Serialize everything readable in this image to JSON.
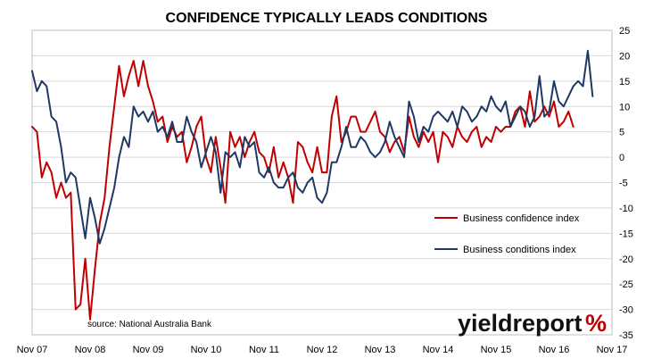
{
  "chart_data": {
    "type": "line",
    "title": "CONFIDENCE TYPICALLY LEADS CONDITIONS",
    "xlabel": "",
    "ylabel": "",
    "x_tick_labels": [
      "Nov 07",
      "Nov 08",
      "Nov 09",
      "Nov 10",
      "Nov 11",
      "Nov 12",
      "Nov 13",
      "Nov 14",
      "Nov 15",
      "Nov 16",
      "Nov 17"
    ],
    "x_range": [
      0,
      120
    ],
    "ylim": [
      -35,
      25
    ],
    "y_ticks": [
      -35,
      -30,
      -25,
      -20,
      -15,
      -10,
      -5,
      0,
      5,
      10,
      15,
      20,
      25
    ],
    "grid": "horizontal",
    "legend_position": "right",
    "series": [
      {
        "name": "Business confidence index",
        "color": "#c00000",
        "values": [
          6,
          5,
          -4,
          -1,
          -3,
          -8,
          -5,
          -8,
          -7,
          -30,
          -29,
          -20,
          -32,
          -22,
          -13,
          -8,
          2,
          10,
          18,
          12,
          16,
          19,
          14,
          19,
          14,
          11,
          7,
          8,
          3,
          6,
          4,
          5,
          -1,
          2,
          6,
          8,
          0,
          -3,
          4,
          -2,
          -9,
          5,
          2,
          4,
          0,
          3,
          5,
          1,
          0,
          -3,
          2,
          -4,
          -1,
          -4,
          -9,
          3,
          2,
          -1,
          -3,
          2,
          -3,
          -3,
          8,
          12,
          3,
          5,
          8,
          8,
          5,
          5,
          7,
          9,
          5,
          4,
          1,
          3,
          4,
          1,
          8,
          4,
          2,
          5,
          3,
          5,
          -1,
          5,
          4,
          2,
          6,
          4,
          3,
          5,
          6,
          2,
          4,
          3,
          6,
          5,
          6,
          6,
          9,
          10,
          6,
          13,
          7,
          8,
          10,
          8,
          11,
          6,
          7,
          9,
          6
        ]
      },
      {
        "name": "Business conditions index",
        "color": "#1f3864",
        "values": [
          17,
          13,
          15,
          14,
          8,
          7,
          2,
          -5,
          -3,
          -4,
          -10,
          -16,
          -8,
          -12,
          -17,
          -14,
          -10,
          -6,
          0,
          4,
          2,
          10,
          8,
          9,
          7,
          9,
          5,
          6,
          4,
          7,
          3,
          3,
          8,
          5,
          3,
          -2,
          1,
          4,
          1,
          -7,
          1,
          0,
          1,
          -2,
          4,
          2,
          3,
          -3,
          -4,
          -2,
          -5,
          -6,
          -6,
          -4,
          -3,
          -6,
          -7,
          -5,
          -4,
          -8,
          -9,
          -7,
          -1,
          -1,
          2,
          6,
          2,
          2,
          4,
          3,
          1,
          0,
          1,
          3,
          7,
          4,
          2,
          0,
          11,
          8,
          3,
          6,
          5,
          8,
          9,
          8,
          7,
          9,
          6,
          10,
          9,
          7,
          8,
          10,
          9,
          12,
          10,
          9,
          11,
          6,
          8,
          10,
          9,
          6,
          8,
          16,
          8,
          9,
          15,
          11,
          10,
          12,
          14,
          15,
          14,
          21,
          12
        ]
      }
    ],
    "annotations": [
      {
        "text": "source: National Australia Bank"
      }
    ]
  },
  "logo": {
    "text": "yieldreport",
    "symbol": "%"
  }
}
